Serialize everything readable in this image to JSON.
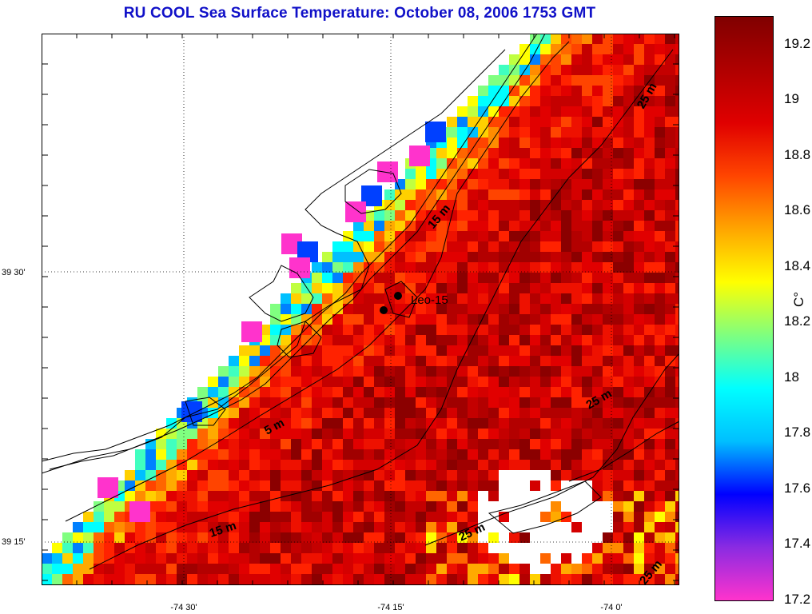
{
  "title": "RU COOL  Sea Surface Temperature:  October 08, 2006 1753 GMT",
  "map": {
    "station_label": "Leo-15",
    "lat_labels": [
      "39 30'",
      "39 15'"
    ],
    "lon_labels": [
      "-74 30'",
      "-74 15'",
      "-74 0'"
    ],
    "contours": [
      "5 m",
      "15 m",
      "15 m",
      "25 m",
      "25 m",
      "25 m",
      "25 m"
    ]
  },
  "colorbar": {
    "unit": "C°",
    "min": 17.2,
    "max": 19.3,
    "ticks": [
      "19.2",
      "19",
      "18.8",
      "18.6",
      "18.4",
      "18.2",
      "18",
      "17.8",
      "17.6",
      "17.4",
      "17.2"
    ],
    "colors": [
      "#ff33cc",
      "#8a2be2",
      "#0000ff",
      "#00bfff",
      "#00ffff",
      "#7fff7f",
      "#ffff00",
      "#ffa500",
      "#ff4500",
      "#e00000",
      "#b00000",
      "#800000"
    ]
  }
}
